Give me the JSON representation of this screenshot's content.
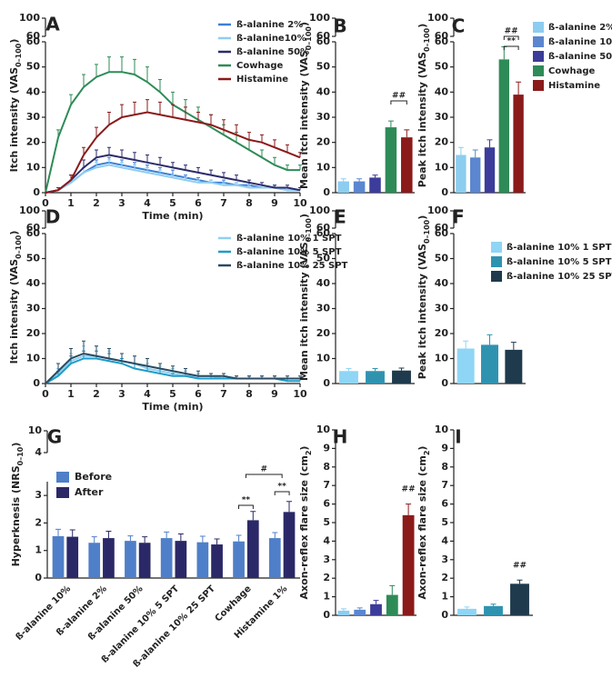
{
  "chart_data": [
    {
      "panel": "A",
      "type": "line",
      "x": [
        0,
        0.5,
        1,
        1.5,
        2,
        2.5,
        3,
        3.5,
        4,
        4.5,
        5,
        5.5,
        6,
        6.5,
        7,
        7.5,
        8,
        8.5,
        9,
        9.5,
        10
      ],
      "xlim": [
        0,
        10
      ],
      "xticks": [
        0,
        1,
        2,
        3,
        4,
        5,
        6,
        7,
        8,
        9,
        10
      ],
      "ylim": [
        0,
        60
      ],
      "yticks": [
        0,
        10,
        20,
        30,
        40,
        50,
        60
      ],
      "ylim_upper": [
        60,
        100
      ],
      "yticks_upper": [
        60,
        100
      ],
      "x_label": "Time (min)",
      "y_label": [
        "Itch intensity (VAS",
        "0–100",
        ")"
      ],
      "legend_position": "upper right",
      "series": [
        {
          "name": "ß-alanine 2%",
          "color": "#3b7fd6",
          "values": [
            0,
            1,
            4,
            8,
            11,
            12,
            11,
            10,
            9,
            8,
            7,
            6,
            5,
            4,
            4,
            3,
            3,
            2,
            2,
            1,
            1
          ],
          "errors": [
            0,
            1,
            1,
            2,
            2,
            2,
            2,
            2,
            2,
            2,
            2,
            1,
            1,
            1,
            1,
            1,
            1,
            1,
            1,
            1,
            1
          ]
        },
        {
          "name": "ß-alanine10%",
          "color": "#8fcdf0",
          "values": [
            0,
            1,
            4,
            8,
            10,
            11,
            10,
            9,
            8,
            7,
            6,
            5,
            4,
            4,
            3,
            3,
            2,
            2,
            2,
            1,
            1
          ],
          "errors": [
            0,
            1,
            1,
            2,
            2,
            2,
            2,
            2,
            2,
            2,
            1,
            1,
            1,
            1,
            1,
            1,
            1,
            1,
            1,
            1,
            1
          ]
        },
        {
          "name": "ß-alanine 50%",
          "color": "#2b2b6b",
          "values": [
            0,
            1,
            5,
            10,
            14,
            15,
            14,
            13,
            12,
            11,
            10,
            9,
            8,
            7,
            6,
            5,
            4,
            3,
            2,
            2,
            1
          ],
          "errors": [
            0,
            1,
            2,
            3,
            3,
            3,
            3,
            3,
            3,
            3,
            2,
            2,
            2,
            2,
            2,
            2,
            1,
            1,
            1,
            1,
            1
          ]
        },
        {
          "name": "Cowhage",
          "color": "#2e8b57",
          "values": [
            0,
            22,
            35,
            42,
            46,
            48,
            48,
            47,
            44,
            40,
            35,
            32,
            29,
            26,
            23,
            20,
            17,
            14,
            11,
            9,
            9
          ],
          "errors": [
            0,
            3,
            4,
            5,
            5,
            6,
            6,
            6,
            6,
            5,
            5,
            5,
            5,
            5,
            4,
            4,
            4,
            3,
            3,
            2,
            2
          ]
        },
        {
          "name": "Histamine",
          "color": "#8b1a1a",
          "values": [
            0,
            1,
            5,
            15,
            22,
            27,
            30,
            31,
            32,
            31,
            30,
            29,
            28,
            27,
            25,
            23,
            21,
            20,
            18,
            16,
            14
          ],
          "errors": [
            0,
            1,
            2,
            3,
            4,
            5,
            5,
            5,
            5,
            5,
            5,
            5,
            4,
            4,
            4,
            4,
            3,
            3,
            3,
            3,
            2
          ]
        }
      ]
    },
    {
      "panel": "B",
      "type": "bar",
      "ylim": [
        0,
        60
      ],
      "yticks": [
        0,
        10,
        20,
        30,
        40,
        50,
        60
      ],
      "ylim_upper": [
        60,
        100
      ],
      "yticks_upper": [
        60,
        100
      ],
      "y_label": [
        "Mean itch intensity (VAS",
        "0–100",
        ")"
      ],
      "values": [
        4.5,
        4.5,
        6,
        26,
        22
      ],
      "errors": [
        1,
        1,
        1,
        2.5,
        3
      ],
      "colors": [
        "#8ccdf0",
        "#5b86d0",
        "#3c3c9a",
        "#2e8b57",
        "#8b1a1a"
      ],
      "annotations": [
        "##"
      ]
    },
    {
      "panel": "C",
      "type": "bar",
      "ylim": [
        0,
        60
      ],
      "yticks": [
        0,
        10,
        20,
        30,
        40,
        50,
        60
      ],
      "ylim_upper": [
        60,
        100
      ],
      "yticks_upper": [
        60,
        100
      ],
      "y_label": [
        "Peak itch intensity (VAS",
        "0–100",
        ")"
      ],
      "values": [
        15,
        14,
        18,
        53,
        39
      ],
      "errors": [
        3,
        3,
        3,
        5,
        5
      ],
      "colors": [
        "#8ccdf0",
        "#5b86d0",
        "#3c3c9a",
        "#2e8b57",
        "#8b1a1a"
      ],
      "legend": [
        "ß-alanine 2%",
        "ß-alanine 10%",
        "ß-alanine 50%",
        "Cowhage",
        "Histamine"
      ],
      "annotations": [
        "##",
        "**"
      ]
    },
    {
      "panel": "D",
      "type": "line",
      "x": [
        0,
        0.5,
        1,
        1.5,
        2,
        2.5,
        3,
        3.5,
        4,
        4.5,
        5,
        5.5,
        6,
        6.5,
        7,
        7.5,
        8,
        8.5,
        9,
        9.5,
        10
      ],
      "xlim": [
        0,
        10
      ],
      "xticks": [
        0,
        1,
        2,
        3,
        4,
        5,
        6,
        7,
        8,
        9,
        10
      ],
      "ylim": [
        0,
        60
      ],
      "yticks": [
        0,
        10,
        20,
        30,
        40,
        50,
        60
      ],
      "ylim_upper": [
        60,
        100
      ],
      "yticks_upper": [
        60,
        100
      ],
      "x_label": "Time (min)",
      "y_label": [
        "Itch intensity (VAS",
        "0–100",
        ")"
      ],
      "legend_position": "upper right",
      "series": [
        {
          "name": "ß-alanine 10% 1 SPT",
          "color": "#8fd0f0",
          "values": [
            0,
            4,
            9,
            11,
            11,
            10,
            9,
            8,
            6,
            5,
            4,
            3,
            3,
            3,
            2,
            2,
            2,
            2,
            2,
            2,
            2
          ],
          "errors": [
            0,
            2,
            3,
            4,
            4,
            3,
            3,
            3,
            2,
            2,
            2,
            2,
            1,
            1,
            1,
            1,
            1,
            1,
            1,
            1,
            1
          ]
        },
        {
          "name": "ß-alanine 10% 5 SPT",
          "color": "#1e9cc8",
          "values": [
            0,
            3,
            8,
            10,
            10,
            9,
            8,
            6,
            5,
            4,
            3,
            3,
            2,
            2,
            2,
            2,
            2,
            2,
            2,
            1,
            1
          ],
          "errors": [
            0,
            2,
            3,
            3,
            3,
            3,
            2,
            2,
            2,
            2,
            1,
            1,
            1,
            1,
            1,
            1,
            1,
            1,
            1,
            1,
            1
          ]
        },
        {
          "name": "ß-alanine 10% 25 SPT",
          "color": "#2a4a62",
          "values": [
            0,
            5,
            10,
            12,
            11,
            10,
            9,
            8,
            7,
            6,
            5,
            4,
            3,
            3,
            3,
            2,
            2,
            2,
            2,
            2,
            2
          ],
          "errors": [
            0,
            3,
            4,
            5,
            4,
            4,
            3,
            3,
            3,
            2,
            2,
            2,
            2,
            1,
            1,
            1,
            1,
            1,
            1,
            1,
            1
          ]
        }
      ]
    },
    {
      "panel": "E",
      "type": "bar",
      "ylim": [
        0,
        60
      ],
      "yticks": [
        0,
        10,
        20,
        30,
        40,
        50,
        60
      ],
      "ylim_upper": [
        60,
        100
      ],
      "yticks_upper": [
        60,
        100
      ],
      "y_label": [
        "Mean itch intensity (VAS",
        "0–100",
        ")"
      ],
      "values": [
        5,
        5,
        5.2
      ],
      "errors": [
        1,
        1,
        1
      ],
      "colors": [
        "#8fd5f5",
        "#2f93b0",
        "#1f3a4c"
      ]
    },
    {
      "panel": "F",
      "type": "bar",
      "ylim": [
        0,
        60
      ],
      "yticks": [
        0,
        10,
        20,
        30,
        40,
        50,
        60
      ],
      "ylim_upper": [
        60,
        100
      ],
      "yticks_upper": [
        60,
        100
      ],
      "y_label": [
        "Peak itch intensity (VAS",
        "0–100",
        ")"
      ],
      "values": [
        14,
        15.5,
        13.5
      ],
      "errors": [
        3,
        4,
        3
      ],
      "colors": [
        "#8fd5f5",
        "#2f93b0",
        "#1f3a4c"
      ],
      "legend": [
        "ß-alanine 10% 1 SPT",
        "ß-alanine 10% 5 SPT",
        "ß-alanine 10% 25 SPT"
      ]
    },
    {
      "panel": "G",
      "type": "grouped_bar",
      "categories": [
        "ß-alanine 10%",
        "ß-alanine 2%",
        "ß-alanine 50%",
        "ß-alanine 10% 5 SPT",
        "ß-alanine 10% 25 SPT",
        "Cowhage",
        "Histamine 1%"
      ],
      "ylim": [
        0,
        3.5
      ],
      "yticks": [
        0,
        1,
        2,
        3
      ],
      "ylim_upper": [
        4,
        10
      ],
      "yticks_upper": [
        4,
        10
      ],
      "y_label": [
        "Hyperknesis (NRS",
        "0–10",
        ")"
      ],
      "legend_position": "upper left",
      "series": [
        {
          "name": "Before",
          "color": "#4f7fc8",
          "values": [
            1.52,
            1.28,
            1.35,
            1.45,
            1.3,
            1.33,
            1.45
          ],
          "errors": [
            0.25,
            0.22,
            0.18,
            0.22,
            0.22,
            0.22,
            0.2
          ]
        },
        {
          "name": "After",
          "color": "#2b2868",
          "values": [
            1.5,
            1.45,
            1.28,
            1.35,
            1.22,
            2.1,
            2.4
          ],
          "errors": [
            0.25,
            0.25,
            0.22,
            0.25,
            0.2,
            0.32,
            0.38
          ]
        }
      ],
      "annotations": [
        "**",
        "**",
        "#"
      ]
    },
    {
      "panel": "H",
      "type": "bar",
      "ylim": [
        0,
        10
      ],
      "yticks": [
        0,
        1,
        2,
        3,
        4,
        5,
        6,
        7,
        8,
        9,
        10
      ],
      "y_label": [
        "Axon-reflex flare size (cm",
        "2",
        ")"
      ],
      "values": [
        0.25,
        0.3,
        0.6,
        1.1,
        5.4
      ],
      "errors": [
        0.1,
        0.1,
        0.2,
        0.5,
        0.6
      ],
      "colors": [
        "#8ccdf0",
        "#5b86d0",
        "#3c3c9a",
        "#2e8b57",
        "#8b1a1a"
      ],
      "annotations": [
        "##"
      ]
    },
    {
      "panel": "I",
      "type": "bar",
      "ylim": [
        0,
        10
      ],
      "yticks": [
        0,
        1,
        2,
        3,
        4,
        5,
        6,
        7,
        8,
        9,
        10
      ],
      "y_label": [
        "Axon-reflex flare size (cm",
        "2",
        ")"
      ],
      "values": [
        0.35,
        0.5,
        1.7
      ],
      "errors": [
        0.1,
        0.1,
        0.2
      ],
      "colors": [
        "#8fd5f5",
        "#2f93b0",
        "#1f3a4c"
      ],
      "annotations": [
        "##"
      ]
    }
  ]
}
